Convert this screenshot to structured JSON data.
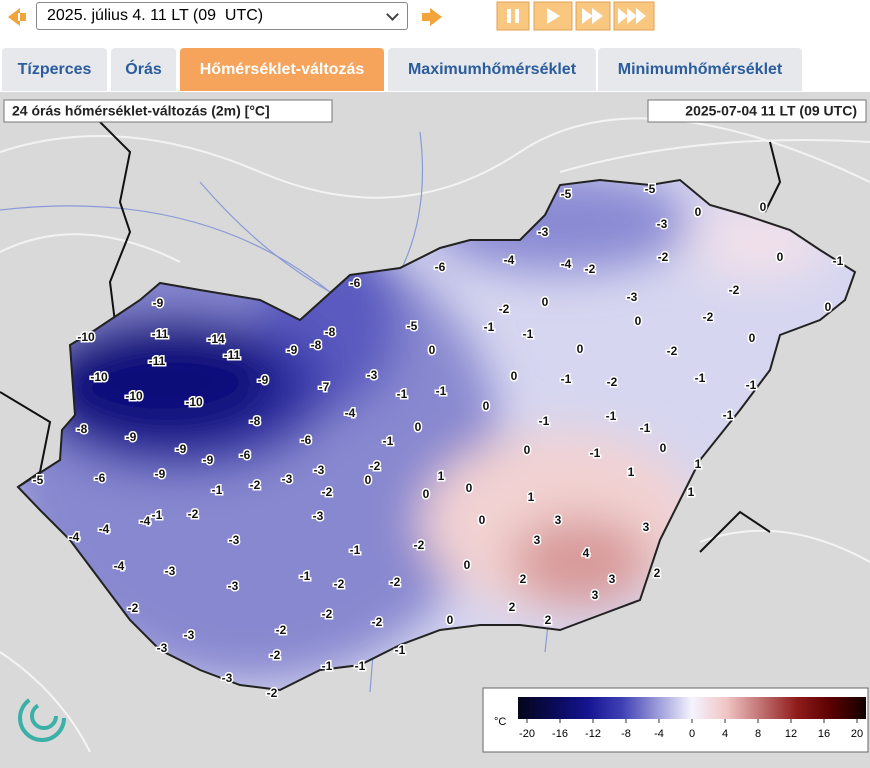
{
  "header": {
    "datetime_select": "2025. július 4. 11 LT (09  UTC)"
  },
  "tabs": [
    "Tízperces",
    "Órás",
    "Hőmérséklet-változás",
    "Maximumhőmérséklet",
    "Minimumhőmérséklet"
  ],
  "active_tab": 2,
  "map": {
    "title": "24 órás hőmérséklet-változás (2m) [°C]",
    "timestamp": "2025-07-04 11 LT (09 UTC)",
    "station_values": [
      -9,
      -10,
      -11,
      -14,
      -11,
      -11,
      -10,
      -9,
      -8,
      -8,
      -9,
      -10,
      -10,
      -7,
      -4,
      -8,
      -9,
      -8,
      -9,
      -6,
      -9,
      -6,
      -9,
      -6,
      -5,
      -3,
      -3,
      -1,
      -2,
      -2,
      -4,
      -1,
      -2,
      -3,
      -4,
      -4,
      -3,
      -4,
      -3,
      -3,
      -1,
      -2,
      -3,
      -3,
      -2,
      -2,
      -2,
      -1,
      -3,
      -2,
      -1,
      -2,
      -1,
      -2,
      -1,
      -2,
      -2,
      0,
      -2,
      -6,
      -6,
      -4,
      -3,
      -5,
      -5,
      -3,
      0,
      0,
      -4,
      -2,
      -2,
      0,
      -1,
      -3,
      -2,
      0,
      -2,
      -1,
      -5,
      -1,
      0,
      -2,
      0,
      0,
      0,
      0,
      -2,
      -3,
      -1,
      -1,
      0,
      -1,
      -2,
      -1,
      -1,
      0,
      0,
      -1,
      -1,
      -1,
      -1,
      -1,
      0,
      -1,
      0,
      1,
      1,
      1,
      0,
      0,
      1,
      1,
      0,
      3,
      3,
      3,
      4,
      0,
      2,
      3,
      2,
      3,
      2,
      2,
      0
    ]
  },
  "legend": {
    "unit": "°C",
    "ticks": [
      -20,
      -16,
      -12,
      -8,
      -4,
      0,
      4,
      8,
      12,
      16,
      20
    ]
  }
}
